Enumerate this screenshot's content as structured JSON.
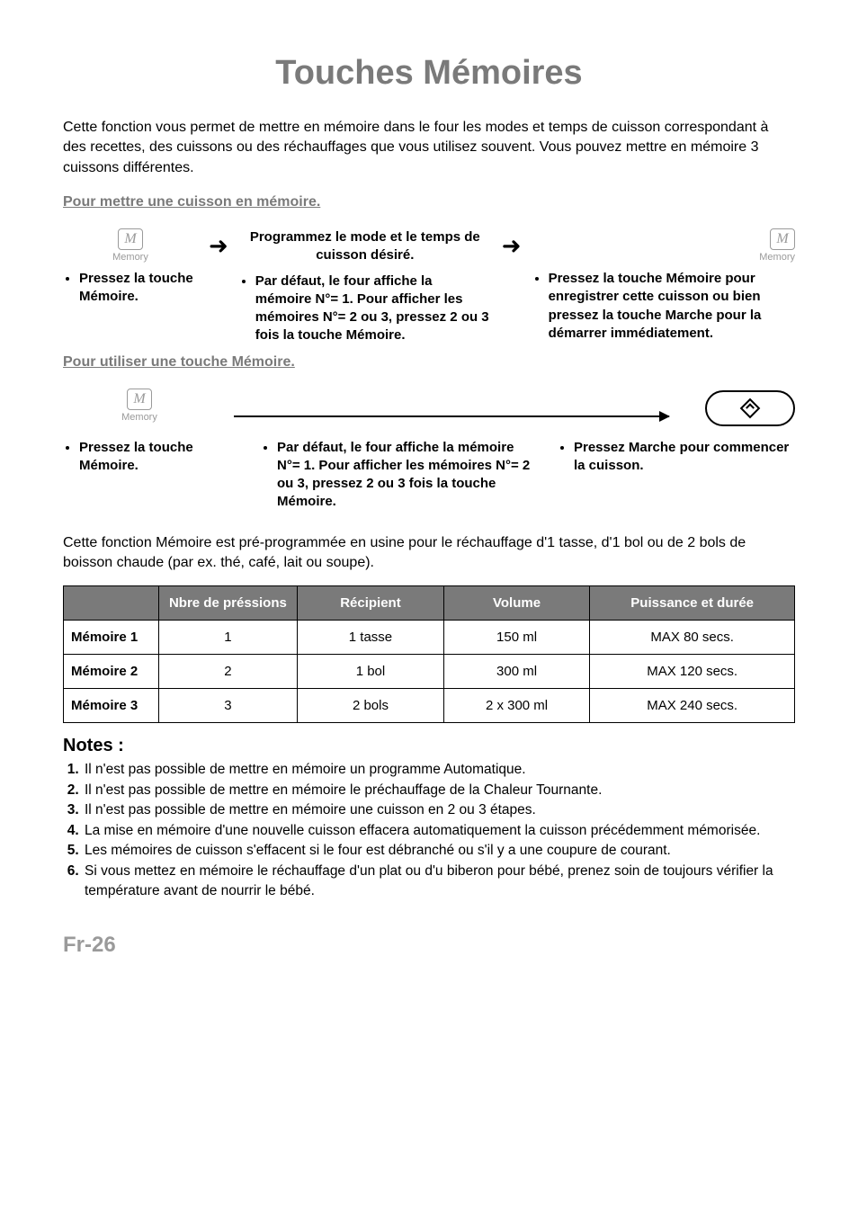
{
  "title": "Touches Mémoires",
  "intro": "Cette fonction vous permet de mettre en mémoire dans le four  les modes et temps de cuisson correspondant à des recettes, des cuissons ou des réchauffages que vous utilisez souvent. Vous pouvez mettre en mémoire 3 cuissons différentes.",
  "section1_heading": "Pour mettre une cuisson en mémoire.",
  "memory_letter": "M",
  "memory_label": "Memory",
  "section1_step1": "Pressez la touche Mémoire.",
  "section1_step2_top": "Programmez le mode et le temps de cuisson désiré.",
  "section1_step2_bullet": "Par défaut, le four affiche la mémoire N°= 1. Pour afficher les mémoires N°= 2 ou 3, pressez  2 ou 3 fois la touche Mémoire.",
  "section1_step3": "Pressez la touche Mémoire pour enregistrer cette cuisson ou bien pressez la touche Marche pour la démarrer immédiatement.",
  "section2_heading": "Pour utiliser une touche Mémoire.",
  "section2_step1": "Pressez la touche Mémoire.",
  "section2_step2": "Par défaut, le four affiche la mémoire N°= 1. Pour afficher les mémoires N°= 2 ou 3, pressez 2 ou 3 fois la touche Mémoire.",
  "section2_step3": "Pressez Marche pour commencer la cuisson.",
  "pre_table": "Cette fonction Mémoire est pré-programmée en usine pour le réchauffage d'1 tasse, d'1 bol ou de 2 bols de boisson chaude (par ex. thé, café, lait ou soupe).",
  "table": {
    "headers": [
      "",
      "Nbre de préssions",
      "Récipient",
      "Volume",
      "Puissance et durée"
    ],
    "rows": [
      [
        "Mémoire 1",
        "1",
        "1 tasse",
        "150 ml",
        "MAX 80 secs."
      ],
      [
        "Mémoire 2",
        "2",
        "1 bol",
        "300 ml",
        "MAX 120 secs."
      ],
      [
        "Mémoire 3",
        "3",
        "2 bols",
        "2 x 300 ml",
        "MAX 240 secs."
      ]
    ]
  },
  "notes_heading": "Notes :",
  "notes": [
    "Il n'est pas possible de mettre en mémoire un programme  Automatique.",
    "Il n'est pas possible de mettre en mémoire le préchauffage de la Chaleur Tournante.",
    "Il n'est pas possible de mettre en mémoire une cuisson en 2 ou 3 étapes.",
    "La mise en mémoire d'une nouvelle cuisson effacera automatiquement la cuisson précédemment mémorisée.",
    "Les mémoires de cuisson s'effacent si le four est débranché ou s'il y a une coupure de courant.",
    "Si vous mettez en mémoire le réchauffage d'un plat ou d'u biberon pour bébé, prenez soin de toujours vérifier la température avant de nourrir le bébé."
  ],
  "page_number": "Fr-26",
  "colors": {
    "grey": "#7a7a7a",
    "icon_grey": "#9a9a9a"
  },
  "table_col_widths_pct": [
    13,
    19,
    20,
    20,
    28
  ]
}
